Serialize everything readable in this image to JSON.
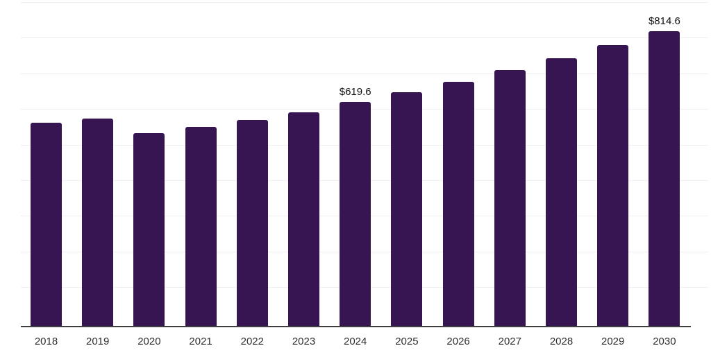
{
  "chart_data": {
    "type": "bar",
    "title": "",
    "xlabel": "",
    "ylabel": "",
    "categories": [
      "2018",
      "2019",
      "2020",
      "2021",
      "2022",
      "2023",
      "2024",
      "2025",
      "2026",
      "2027",
      "2028",
      "2029",
      "2030"
    ],
    "values": [
      562,
      573,
      533,
      550,
      570,
      591,
      619.6,
      646,
      675,
      707,
      740,
      776,
      814.6
    ],
    "data_labels": [
      "",
      "",
      "",
      "",
      "",
      "",
      "$619.6",
      "",
      "",
      "",
      "",
      "",
      "$814.6"
    ],
    "ylim": [
      0,
      900
    ],
    "gridline_step": 100,
    "grid": "horizontal",
    "legend_position": "none",
    "bar_color": "#371552",
    "axis_line_color": "#3f3f42",
    "gridline_color": "#f0f0f2",
    "x_label_color": "#2e2e30",
    "data_label_color": "#121212"
  }
}
